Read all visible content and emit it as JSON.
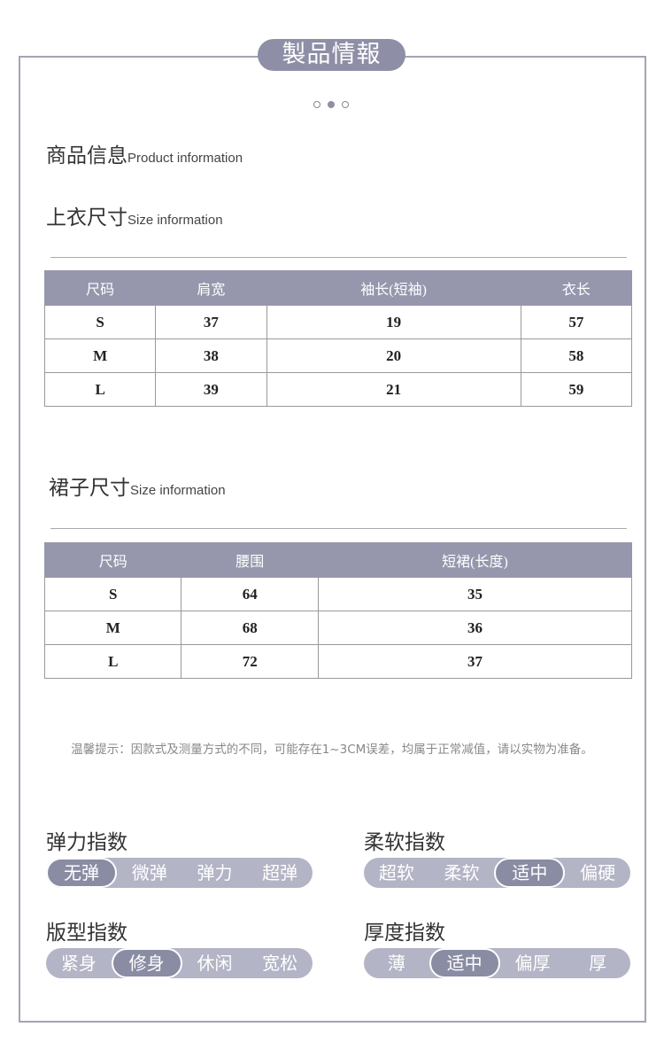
{
  "title": "製品情報",
  "carousel": {
    "count": 3,
    "active": 1
  },
  "product_info": {
    "zh": "商品信息",
    "en": "Product information"
  },
  "top_size": {
    "zh": "上衣尺寸",
    "en": "Size information",
    "headers": [
      "尺码",
      "肩宽",
      "袖长(短袖)",
      "衣长"
    ],
    "rows": [
      [
        "S",
        "37",
        "19",
        "57"
      ],
      [
        "M",
        "38",
        "20",
        "58"
      ],
      [
        "L",
        "39",
        "21",
        "59"
      ]
    ]
  },
  "skirt_size": {
    "zh": "裙子尺寸",
    "en": "Size information",
    "headers": [
      "尺码",
      "腰围",
      "短裙(长度)"
    ],
    "rows": [
      [
        "S",
        "64",
        "35"
      ],
      [
        "M",
        "68",
        "36"
      ],
      [
        "L",
        "72",
        "37"
      ]
    ]
  },
  "tip": "温馨提示：因款式及测量方式的不同，可能存在1~3CM误差，均属于正常减值，请以实物为准备。",
  "indices": [
    {
      "label": "弹力指数",
      "options": [
        "无弹",
        "微弹",
        "弹力",
        "超弹"
      ],
      "selected": 0
    },
    {
      "label": "柔软指数",
      "options": [
        "超软",
        "柔软",
        "适中",
        "偏硬"
      ],
      "selected": 2
    },
    {
      "label": "版型指数",
      "options": [
        "紧身",
        "修身",
        "休闲",
        "宽松"
      ],
      "selected": 1
    },
    {
      "label": "厚度指数",
      "options": [
        "薄",
        "适中",
        "偏厚",
        "厚"
      ],
      "selected": 1
    }
  ],
  "colors": {
    "accent": "#8e8fa6",
    "pill_bg": "#b3b4c5",
    "border": "#a3a4b5"
  }
}
